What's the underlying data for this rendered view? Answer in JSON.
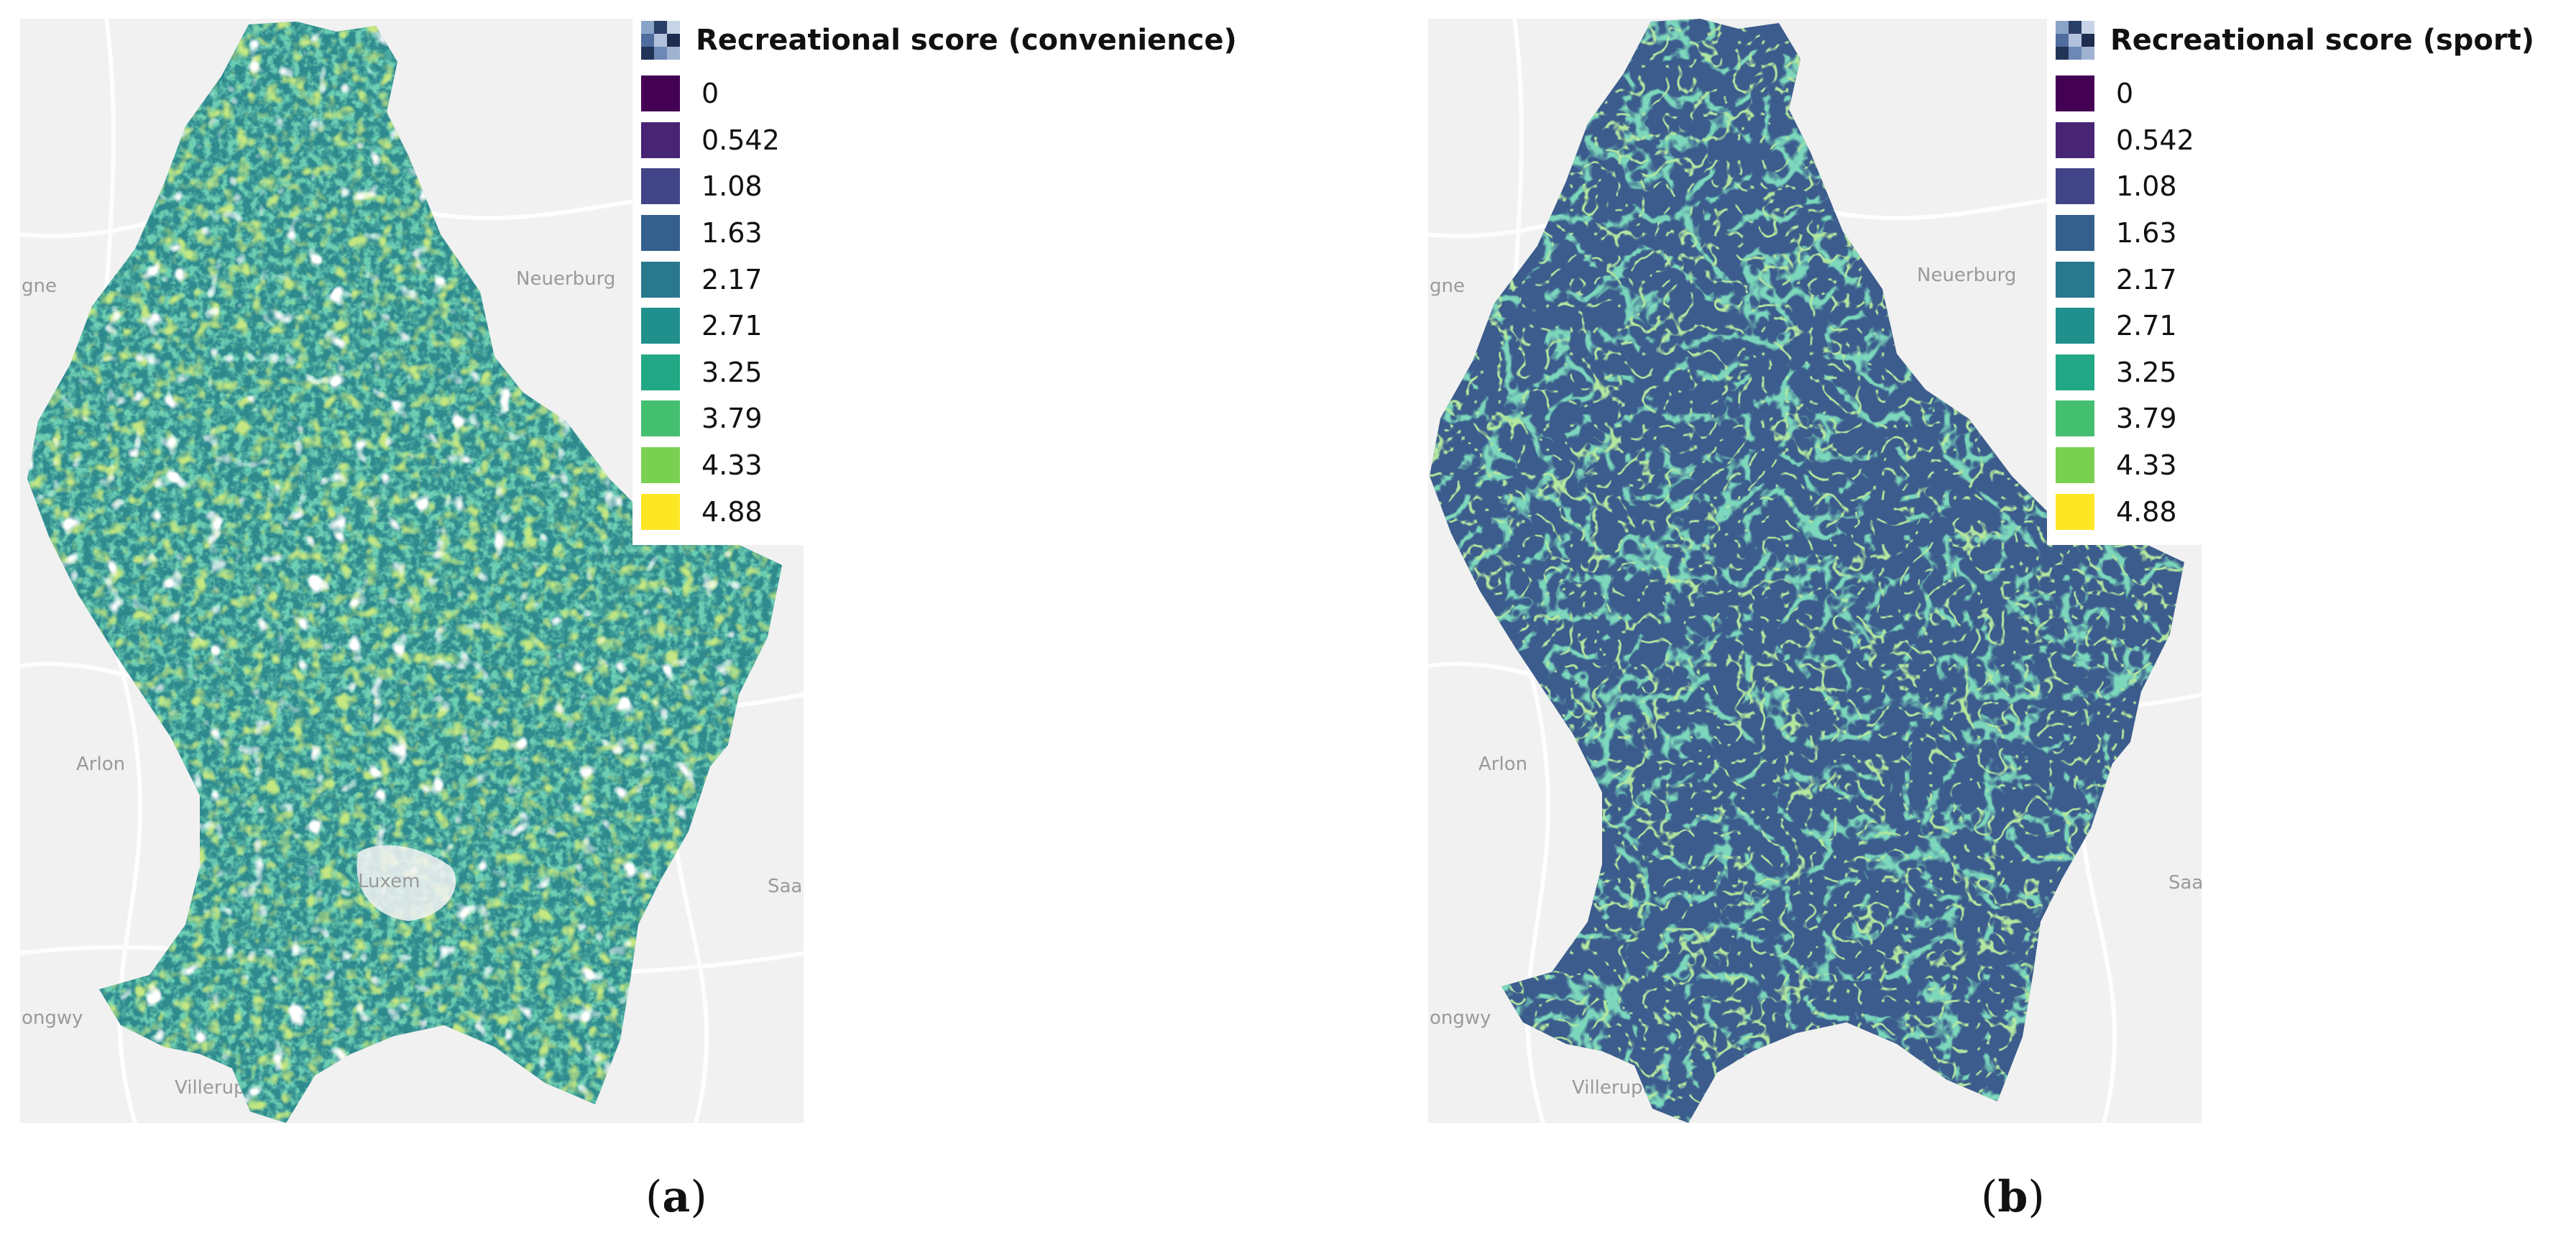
{
  "panels": [
    {
      "id": "a",
      "caption_letter": "a",
      "legend": {
        "title": "Recreational score (convenience)",
        "title_icon": "raster-layer-icon",
        "entries": [
          "0",
          "0.542",
          "1.08",
          "1.63",
          "2.17",
          "2.71",
          "3.25",
          "3.79",
          "4.33",
          "4.88"
        ]
      },
      "place_labels": [
        "gne",
        "Neuerburg",
        "Arlon",
        "Luxem",
        "ongwy",
        "Villerupt",
        "Saa"
      ]
    },
    {
      "id": "b",
      "caption_letter": "b",
      "legend": {
        "title": "Recreational score (sport)",
        "title_icon": "raster-layer-icon",
        "entries": [
          "0",
          "0.542",
          "1.08",
          "1.63",
          "2.17",
          "2.71",
          "3.25",
          "3.79",
          "4.33",
          "4.88"
        ]
      },
      "place_labels": [
        "gne",
        "Neuerburg",
        "Arlon",
        "ongwy",
        "Villerupt",
        "Saa"
      ]
    }
  ],
  "colors": {
    "viridis": [
      "#440154",
      "#482475",
      "#414487",
      "#355f8d",
      "#2a788e",
      "#21908d",
      "#22a884",
      "#44bf70",
      "#7ad151",
      "#fde725"
    ],
    "basemap": "#f1f1f1",
    "roads": "#ffffff"
  }
}
